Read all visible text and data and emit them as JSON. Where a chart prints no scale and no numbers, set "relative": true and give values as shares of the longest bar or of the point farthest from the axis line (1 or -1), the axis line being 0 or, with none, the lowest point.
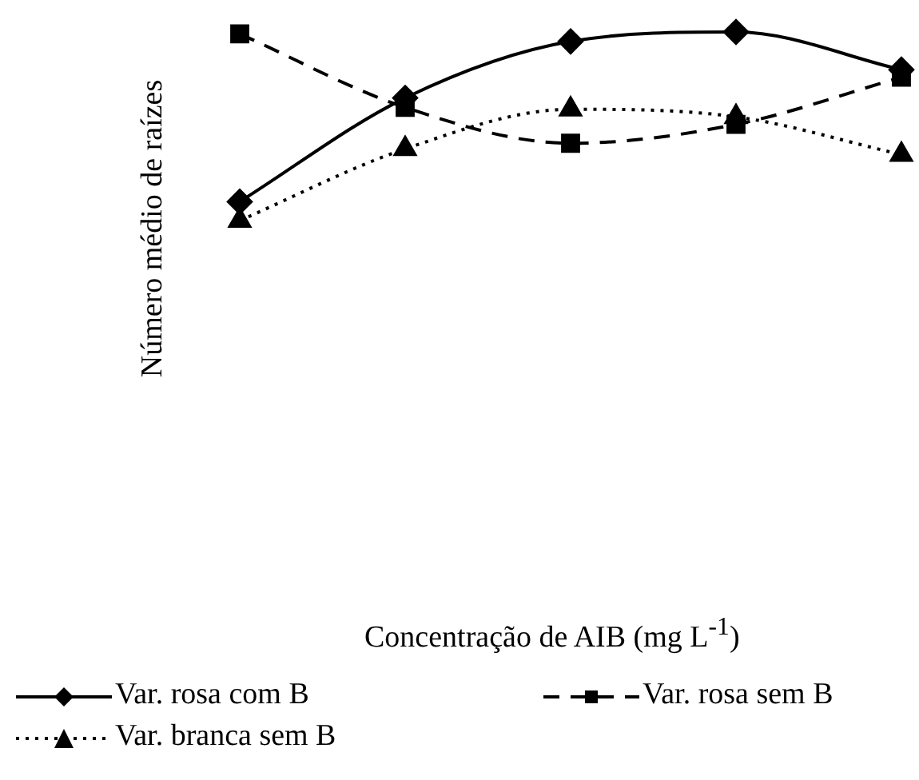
{
  "chart_data": {
    "type": "line",
    "relative": true,
    "annotations": [
      "Concentração de AIB (mg L$^{-1}$)"
    ],
    "ylabel": "Número médio de raízes",
    "categories": [
      null,
      null,
      null,
      null,
      null
    ],
    "legend": "bottom",
    "series": [
      {
        "name": "Var. rosa com B",
        "color": "#000000",
        "marker": "diamond",
        "line_style": "solid",
        "values": [
          0.1,
          0.65,
          0.95,
          1.0,
          0.8
        ]
      },
      {
        "name": "Var. rosa sem B",
        "color": "#000000",
        "marker": "square",
        "line_style": "dashed",
        "values": [
          0.99,
          0.6,
          0.41,
          0.51,
          0.76
        ]
      },
      {
        "name": "Var. branca sem B",
        "color": "#000000",
        "marker": "triangle",
        "line_style": "dotted",
        "values": [
          0,
          0.38,
          0.59,
          0.55,
          0.35
        ]
      }
    ]
  }
}
